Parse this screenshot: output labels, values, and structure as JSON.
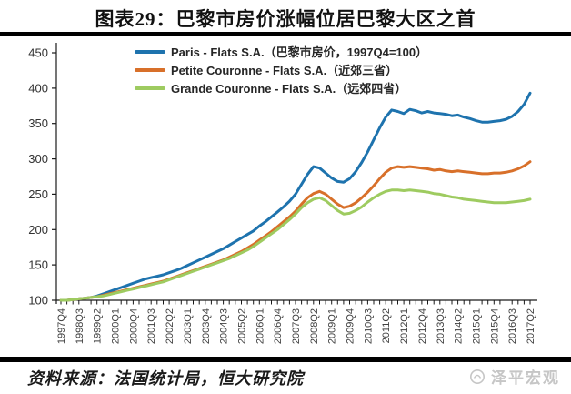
{
  "title": "图表29：巴黎市房价涨幅位居巴黎大区之首",
  "footer": {
    "source": "资料来源：法国统计局，恒大研究院",
    "watermark": "泽平宏观"
  },
  "legend": [
    {
      "label": "Paris - Flats S.A.（巴黎市房价，1997Q4=100）",
      "color": "#1E73AE"
    },
    {
      "label": "Petite Couronne - Flats S.A.（近郊三省）",
      "color": "#D8702A"
    },
    {
      "label": "Grande Couronne - Flats S.A.（远郊四省）",
      "color": "#9ECB60"
    }
  ],
  "chart_data": {
    "type": "line",
    "title": "图表29：巴黎市房价涨幅位居巴黎大区之首",
    "xlabel": "",
    "ylabel": "",
    "ylim": [
      100,
      450
    ],
    "y_ticks": [
      100,
      150,
      200,
      250,
      300,
      350,
      400,
      450
    ],
    "grid": false,
    "legend_position": "top-left",
    "x_tick_every": 3,
    "x": [
      "1997Q4",
      "1998Q1",
      "1998Q2",
      "1998Q3",
      "1998Q4",
      "1999Q1",
      "1999Q2",
      "1999Q3",
      "1999Q4",
      "2000Q1",
      "2000Q2",
      "2000Q3",
      "2000Q4",
      "2001Q1",
      "2001Q2",
      "2001Q3",
      "2001Q4",
      "2002Q1",
      "2002Q2",
      "2002Q3",
      "2002Q4",
      "2003Q1",
      "2003Q2",
      "2003Q3",
      "2003Q4",
      "2004Q1",
      "2004Q2",
      "2004Q3",
      "2004Q4",
      "2005Q1",
      "2005Q2",
      "2005Q3",
      "2005Q4",
      "2006Q1",
      "2006Q2",
      "2006Q3",
      "2006Q4",
      "2007Q1",
      "2007Q2",
      "2007Q3",
      "2007Q4",
      "2008Q1",
      "2008Q2",
      "2008Q3",
      "2008Q4",
      "2009Q1",
      "2009Q2",
      "2009Q3",
      "2009Q4",
      "2010Q1",
      "2010Q2",
      "2010Q3",
      "2010Q4",
      "2011Q1",
      "2011Q2",
      "2011Q3",
      "2011Q4",
      "2012Q1",
      "2012Q2",
      "2012Q3",
      "2012Q4",
      "2013Q1",
      "2013Q2",
      "2013Q3",
      "2013Q4",
      "2014Q1",
      "2014Q2",
      "2014Q3",
      "2014Q4",
      "2015Q1",
      "2015Q2",
      "2015Q3",
      "2015Q4",
      "2016Q1",
      "2016Q2",
      "2016Q3",
      "2016Q4",
      "2017Q1",
      "2017Q2"
    ],
    "series": [
      {
        "name": "Paris - Flats S.A.（巴黎市房价，1997Q4=100）",
        "color": "#1E73AE",
        "values": [
          100,
          100,
          101,
          102,
          103,
          104,
          106,
          109,
          112,
          115,
          118,
          121,
          124,
          127,
          130,
          132,
          134,
          136,
          139,
          142,
          145,
          149,
          153,
          157,
          161,
          165,
          169,
          173,
          178,
          183,
          188,
          193,
          198,
          205,
          211,
          218,
          225,
          232,
          240,
          250,
          264,
          278,
          289,
          287,
          280,
          273,
          268,
          267,
          272,
          282,
          295,
          310,
          327,
          344,
          359,
          369,
          367,
          364,
          370,
          368,
          365,
          367,
          365,
          364,
          363,
          361,
          362,
          359,
          357,
          354,
          352,
          352,
          353,
          354,
          356,
          360,
          367,
          377,
          393
        ]
      },
      {
        "name": "Petite Couronne - Flats S.A.（近郊三省）",
        "color": "#D8702A",
        "values": [
          100,
          100,
          101,
          102,
          103,
          104,
          105,
          107,
          109,
          111,
          113,
          115,
          117,
          119,
          121,
          123,
          125,
          127,
          130,
          133,
          136,
          139,
          142,
          145,
          148,
          151,
          154,
          157,
          161,
          165,
          169,
          174,
          179,
          185,
          191,
          197,
          204,
          211,
          218,
          226,
          236,
          245,
          251,
          254,
          250,
          243,
          236,
          231,
          233,
          238,
          245,
          253,
          262,
          272,
          281,
          287,
          289,
          288,
          289,
          288,
          287,
          286,
          284,
          285,
          283,
          282,
          283,
          282,
          281,
          280,
          279,
          279,
          280,
          280,
          281,
          283,
          286,
          290,
          296
        ]
      },
      {
        "name": "Grande Couronne - Flats S.A.（远郊四省）",
        "color": "#9ECB60",
        "values": [
          100,
          100,
          101,
          102,
          103,
          104,
          105,
          106,
          108,
          110,
          112,
          114,
          116,
          118,
          120,
          122,
          124,
          126,
          129,
          132,
          135,
          138,
          141,
          144,
          147,
          150,
          153,
          156,
          159,
          163,
          167,
          171,
          176,
          182,
          188,
          194,
          200,
          207,
          214,
          222,
          231,
          238,
          243,
          245,
          241,
          234,
          227,
          222,
          223,
          227,
          232,
          239,
          245,
          250,
          254,
          256,
          256,
          255,
          256,
          255,
          254,
          253,
          251,
          250,
          248,
          246,
          245,
          243,
          242,
          241,
          240,
          239,
          238,
          238,
          238,
          239,
          240,
          241,
          243
        ]
      }
    ]
  }
}
